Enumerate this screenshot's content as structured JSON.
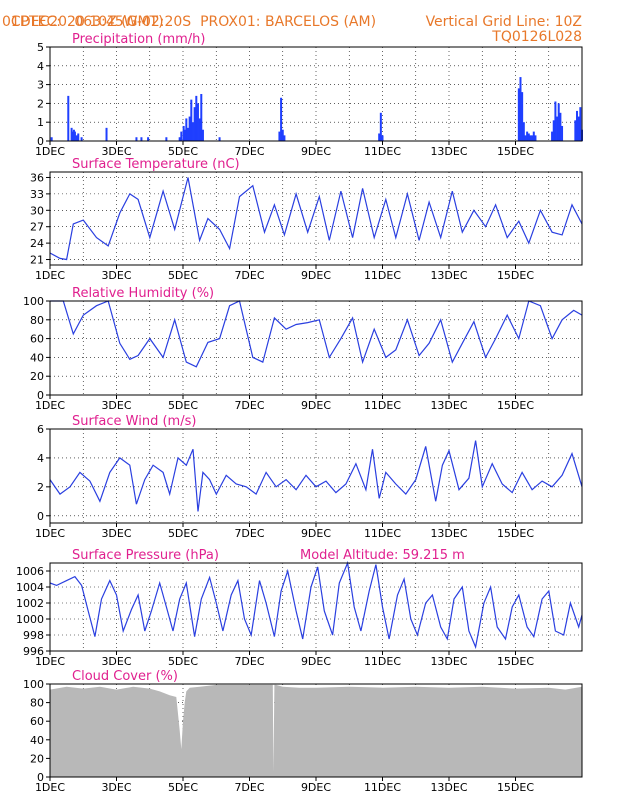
{
  "header": {
    "source": "CPTEC:",
    "coords": "063:45W-02:20S",
    "location": "PROX01: BARCELOS (AM)",
    "run": "01DEC2020 10Z (GMT)",
    "grid_note": "Vertical Grid Line: 10Z",
    "model_code": "TQ0126L028"
  },
  "x_labels": [
    "1DEC",
    "3DEC",
    "5DEC",
    "7DEC",
    "9DEC",
    "11DEC",
    "13DEC",
    "15DEC"
  ],
  "chart_data": [
    {
      "type": "bar",
      "title": "Precipitation (mm/h)",
      "ylim": [
        0,
        5
      ],
      "yticks": [
        0,
        1,
        2,
        3,
        4,
        5
      ],
      "color": "#1f3fff",
      "x_days": [
        0.05,
        0.55,
        0.65,
        0.7,
        0.72,
        0.75,
        0.8,
        0.85,
        0.95,
        1.7,
        2.6,
        2.75,
        2.95,
        3.5,
        3.9,
        3.95,
        4.02,
        4.07,
        4.1,
        4.15,
        4.2,
        4.25,
        4.3,
        4.35,
        4.4,
        4.45,
        4.5,
        4.55,
        4.6,
        5.1,
        6.9,
        6.95,
        7.0,
        7.05,
        9.9,
        9.95,
        10.0,
        14.1,
        14.15,
        14.2,
        14.25,
        14.3,
        14.35,
        14.4,
        14.45,
        14.5,
        14.55,
        14.6,
        15.1,
        15.15,
        15.2,
        15.25,
        15.3,
        15.35,
        15.4,
        15.8,
        15.85,
        15.9,
        15.95,
        16.0
      ],
      "values": [
        0.2,
        2.4,
        0.7,
        0.5,
        0.6,
        0.5,
        0.3,
        0.4,
        0.2,
        0.7,
        0.2,
        0.2,
        0.2,
        0.2,
        0.2,
        0.5,
        0.8,
        0.6,
        1.2,
        0.7,
        1.3,
        2.2,
        1.0,
        1.8,
        2.4,
        2.0,
        1.2,
        2.5,
        0.6,
        0.2,
        0.5,
        2.3,
        0.6,
        0.3,
        0.4,
        1.5,
        0.3,
        2.8,
        3.4,
        2.6,
        1.0,
        0.3,
        0.5,
        0.4,
        0.3,
        0.3,
        0.5,
        0.3,
        0.5,
        1.1,
        2.1,
        1.3,
        2.0,
        1.5,
        0.8,
        1.1,
        1.6,
        1.3,
        1.8,
        0.6
      ]
    },
    {
      "type": "line",
      "title": "Surface Temperature (nC)",
      "ylim": [
        20,
        37
      ],
      "yticks": [
        21,
        24,
        27,
        30,
        33,
        36
      ],
      "color": "#2a3fe0",
      "x_days": [
        0.0,
        0.3,
        0.5,
        0.7,
        1.0,
        1.4,
        1.75,
        2.1,
        2.4,
        2.65,
        3.0,
        3.4,
        3.75,
        4.15,
        4.5,
        4.75,
        5.1,
        5.4,
        5.7,
        6.1,
        6.45,
        6.75,
        7.05,
        7.4,
        7.75,
        8.1,
        8.4,
        8.75,
        9.1,
        9.4,
        9.75,
        10.1,
        10.4,
        10.75,
        11.1,
        11.4,
        11.75,
        12.1,
        12.4,
        12.75,
        13.1,
        13.4,
        13.75,
        14.1,
        14.4,
        14.75,
        15.1,
        15.4,
        15.7,
        16.0
      ],
      "values": [
        22.2,
        21.2,
        21.0,
        27.5,
        28.2,
        25.0,
        23.5,
        29.5,
        33.0,
        32.0,
        25.0,
        33.5,
        26.5,
        36.0,
        24.5,
        28.5,
        26.5,
        23.0,
        32.5,
        34.5,
        26.0,
        31.0,
        25.5,
        33.0,
        26.0,
        32.5,
        24.5,
        33.5,
        25.0,
        34.0,
        25.0,
        32.0,
        25.0,
        33.0,
        24.5,
        31.5,
        25.0,
        33.5,
        26.0,
        30.0,
        27.0,
        31.0,
        25.0,
        28.0,
        24.0,
        30.0,
        26.0,
        25.5,
        31.0,
        27.5
      ]
    },
    {
      "type": "line",
      "title": "Relative Humidity (%)",
      "ylim": [
        0,
        100
      ],
      "yticks": [
        0,
        20,
        40,
        60,
        80,
        100
      ],
      "color": "#2a3fe0",
      "x_days": [
        0.0,
        0.4,
        0.7,
        1.0,
        1.4,
        1.75,
        2.1,
        2.4,
        2.65,
        3.0,
        3.4,
        3.75,
        4.1,
        4.4,
        4.75,
        5.1,
        5.4,
        5.7,
        6.1,
        6.4,
        6.75,
        7.1,
        7.4,
        7.75,
        8.1,
        8.4,
        8.75,
        9.1,
        9.4,
        9.75,
        10.1,
        10.4,
        10.75,
        11.1,
        11.4,
        11.75,
        12.1,
        12.4,
        12.75,
        13.1,
        13.4,
        13.75,
        14.1,
        14.4,
        14.75,
        15.1,
        15.4,
        15.75,
        16.0
      ],
      "values": [
        100,
        100,
        65,
        85,
        95,
        100,
        55,
        38,
        42,
        60,
        40,
        80,
        35,
        30,
        56,
        60,
        95,
        100,
        40,
        35,
        82,
        70,
        75,
        77,
        80,
        40,
        60,
        82,
        35,
        70,
        40,
        48,
        80,
        42,
        55,
        80,
        35,
        55,
        78,
        40,
        60,
        85,
        60,
        100,
        95,
        60,
        80,
        90,
        85
      ]
    },
    {
      "type": "line",
      "title": "Surface Wind (m/s)",
      "ylim": [
        -0.5,
        6
      ],
      "yticks": [
        0,
        2,
        4,
        6
      ],
      "color": "#2a3fe0",
      "x_days": [
        0.0,
        0.3,
        0.6,
        0.9,
        1.2,
        1.5,
        1.8,
        2.1,
        2.4,
        2.6,
        2.85,
        3.1,
        3.4,
        3.6,
        3.85,
        4.1,
        4.3,
        4.45,
        4.6,
        4.8,
        5.0,
        5.3,
        5.6,
        5.9,
        6.2,
        6.5,
        6.8,
        7.1,
        7.4,
        7.7,
        8.0,
        8.3,
        8.6,
        8.9,
        9.2,
        9.5,
        9.7,
        9.9,
        10.1,
        10.4,
        10.7,
        11.0,
        11.3,
        11.6,
        11.8,
        12.0,
        12.3,
        12.6,
        12.8,
        13.0,
        13.3,
        13.6,
        13.9,
        14.2,
        14.5,
        14.8,
        15.1,
        15.4,
        15.7,
        16.0
      ],
      "values": [
        2.5,
        1.5,
        2.0,
        3.0,
        2.4,
        1.0,
        3.0,
        4.0,
        3.5,
        0.8,
        2.5,
        3.5,
        3.0,
        1.5,
        4.0,
        3.5,
        4.6,
        0.3,
        3.0,
        2.5,
        1.5,
        2.8,
        2.2,
        2.0,
        1.5,
        3.0,
        2.0,
        2.5,
        1.8,
        2.8,
        2.0,
        2.4,
        1.6,
        2.2,
        3.6,
        1.8,
        4.6,
        1.2,
        3.0,
        2.2,
        1.5,
        2.5,
        4.8,
        1.0,
        3.5,
        4.5,
        1.8,
        2.6,
        5.2,
        2.0,
        3.6,
        2.2,
        1.6,
        3.0,
        1.8,
        2.4,
        2.0,
        2.8,
        4.3,
        2.0
      ]
    },
    {
      "type": "line",
      "title": "Surface Pressure (hPa)",
      "subtitle": "Model Altitude: 59.215 m",
      "ylim": [
        996,
        1007
      ],
      "yticks": [
        996,
        998,
        1000,
        1002,
        1004,
        1006
      ],
      "color": "#2a3fe0",
      "x_days": [
        0.0,
        0.2,
        0.5,
        0.75,
        0.95,
        1.15,
        1.35,
        1.55,
        1.8,
        2.0,
        2.2,
        2.45,
        2.65,
        2.85,
        3.05,
        3.3,
        3.5,
        3.7,
        3.9,
        4.1,
        4.35,
        4.55,
        4.8,
        5.0,
        5.2,
        5.45,
        5.65,
        5.85,
        6.05,
        6.3,
        6.5,
        6.75,
        6.95,
        7.15,
        7.4,
        7.6,
        7.85,
        8.05,
        8.25,
        8.5,
        8.7,
        8.95,
        9.15,
        9.35,
        9.6,
        9.8,
        10.0,
        10.2,
        10.45,
        10.65,
        10.85,
        11.05,
        11.3,
        11.5,
        11.75,
        11.95,
        12.15,
        12.4,
        12.6,
        12.8,
        13.05,
        13.25,
        13.45,
        13.7,
        13.9,
        14.1,
        14.35,
        14.55,
        14.8,
        15.0,
        15.2,
        15.45,
        15.65,
        15.9,
        16.0
      ],
      "values": [
        1004.5,
        1004.2,
        1004.8,
        1005.3,
        1004.2,
        1001.0,
        997.8,
        1002.5,
        1004.8,
        1003.0,
        998.5,
        1001.2,
        1003.0,
        998.5,
        1001.0,
        1004.5,
        1001.5,
        998.5,
        1002.5,
        1004.5,
        997.8,
        1002.5,
        1005.2,
        1002.0,
        998.5,
        1003.0,
        1004.8,
        1000.0,
        998.0,
        1004.8,
        1002.0,
        997.8,
        1003.5,
        1006.0,
        1001.0,
        997.5,
        1004.0,
        1006.5,
        1001.0,
        998.0,
        1004.5,
        1007.0,
        1001.5,
        998.5,
        1003.5,
        1006.8,
        1001.5,
        997.5,
        1003.0,
        1005.0,
        1000.0,
        998.0,
        1002.0,
        1003.0,
        999.0,
        997.5,
        1002.5,
        1004.0,
        998.5,
        996.5,
        1002.0,
        1004.0,
        999.0,
        997.5,
        1001.5,
        1003.0,
        999.0,
        997.8,
        1002.5,
        1003.5,
        998.5,
        998.0,
        1002.0,
        999.0,
        1000.5
      ]
    },
    {
      "type": "area",
      "title": "Cloud Cover (%)",
      "ylim": [
        0,
        100
      ],
      "yticks": [
        0,
        20,
        40,
        60,
        80,
        100
      ],
      "color": "#b8b8b8",
      "x_days": [
        0.0,
        0.5,
        1.0,
        1.5,
        2.0,
        2.5,
        3.0,
        3.3,
        3.6,
        3.8,
        3.9,
        3.95,
        4.0,
        4.05,
        4.1,
        4.2,
        4.5,
        5.0,
        5.5,
        6.0,
        6.5,
        6.7,
        6.72,
        6.75,
        6.8,
        7.0,
        7.5,
        8.0,
        9.0,
        10.0,
        11.0,
        12.0,
        13.0,
        14.0,
        15.0,
        15.5,
        16.0
      ],
      "values": [
        94,
        97,
        95,
        97,
        94,
        97,
        95,
        92,
        88,
        86,
        50,
        30,
        60,
        80,
        92,
        96,
        97,
        99,
        99,
        99,
        99,
        99,
        5,
        99,
        99,
        97,
        96,
        96,
        97,
        96,
        97,
        96,
        97,
        95,
        96,
        94,
        97
      ]
    }
  ]
}
